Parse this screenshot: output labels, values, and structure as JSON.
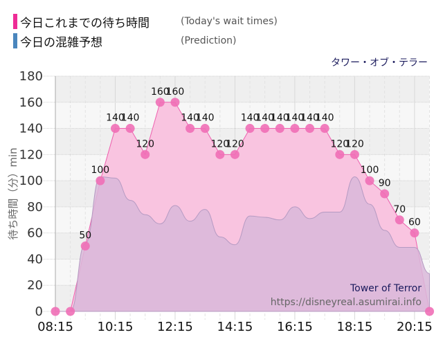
{
  "legend": [
    {
      "label": "今日これまでの待ち時間",
      "sub": "(Today's wait times)",
      "color": "#ee2c96"
    },
    {
      "label": "今日の混雑予想",
      "sub": "(Prediction)",
      "color": "#4a86bd"
    }
  ],
  "attraction_name_jp": "タワー・オブ・テラー",
  "watermark": {
    "title": "Tower of Terror",
    "url": "https://disneyreal.asumirai.info"
  },
  "colors": {
    "actual_fill": "#f9c4e0",
    "actual_line": "#ee5fae",
    "actual_point": "#ef6fb6",
    "prediction_fill": "#d9b8d9",
    "prediction_line": "#b59ac2",
    "plot_bg_light": "#f7f7f7",
    "plot_bg_dark": "#efefef",
    "grid": "#cfcfcf"
  },
  "chart_data": {
    "type": "area",
    "title": "タワー・オブ・テラー",
    "xlabel": "",
    "ylabel": "待ち時間（分）min",
    "ylim": [
      0,
      180
    ],
    "yticks": [
      0,
      20,
      40,
      60,
      80,
      100,
      120,
      140,
      160,
      180
    ],
    "xtick_labels": [
      "08:15",
      "10:15",
      "12:15",
      "14:15",
      "16:15",
      "18:15",
      "20:15"
    ],
    "grid": true,
    "legend_position": "top-left",
    "x": [
      "08:15",
      "08:45",
      "09:15",
      "09:45",
      "10:15",
      "10:45",
      "11:15",
      "11:45",
      "12:15",
      "12:45",
      "13:15",
      "13:45",
      "14:15",
      "14:45",
      "15:15",
      "15:45",
      "16:15",
      "16:45",
      "17:15",
      "17:45",
      "18:15",
      "18:45",
      "19:15",
      "19:45",
      "20:15",
      "20:45"
    ],
    "series": [
      {
        "name": "今日これまでの待ち時間 (Today's wait times)",
        "values": [
          0,
          0,
          50,
          100,
          140,
          140,
          120,
          160,
          160,
          140,
          140,
          120,
          120,
          140,
          140,
          140,
          140,
          140,
          140,
          120,
          120,
          100,
          90,
          70,
          60,
          0
        ]
      },
      {
        "name": "今日の混雑予想 (Prediction)",
        "values": [
          0,
          0,
          52,
          103,
          102,
          85,
          74,
          67,
          81,
          69,
          78,
          57,
          51,
          73,
          72,
          70,
          80,
          71,
          76,
          76,
          103,
          82,
          62,
          49,
          49,
          29
        ]
      }
    ]
  }
}
